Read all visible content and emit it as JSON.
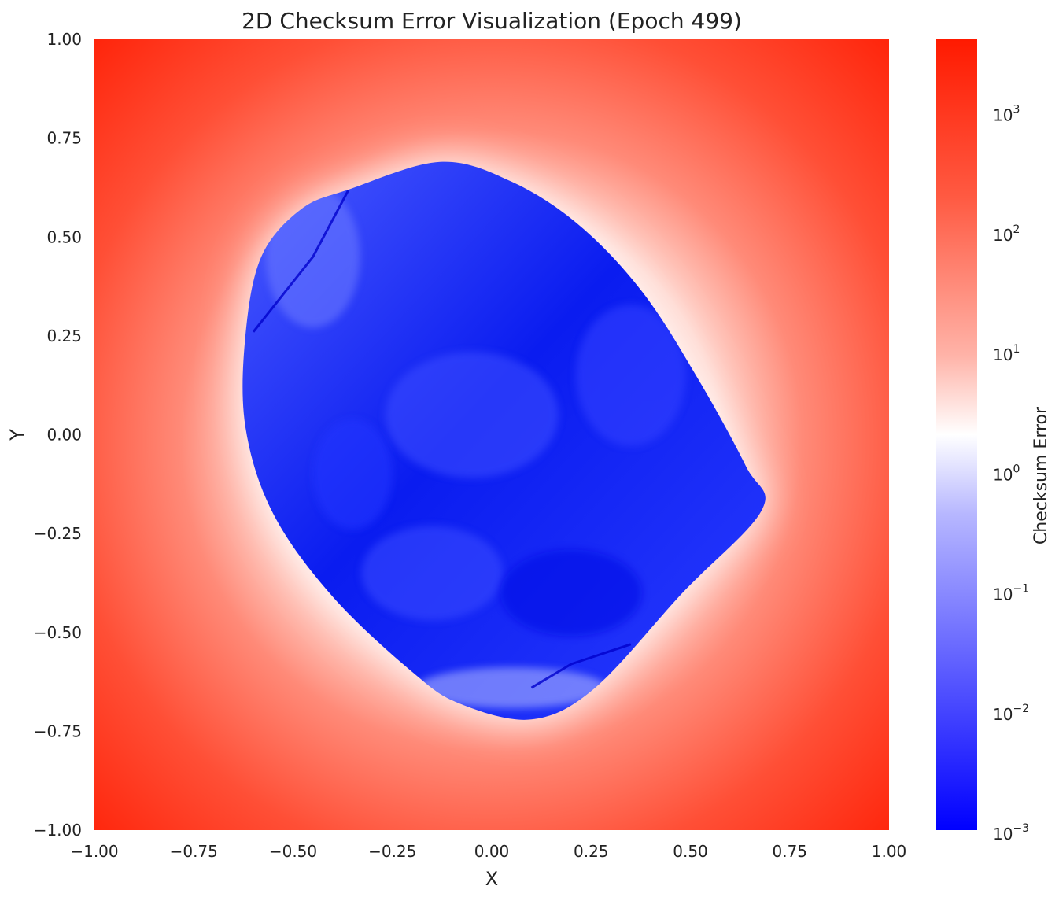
{
  "chart_data": {
    "type": "heatmap",
    "title": "2D Checksum Error Visualization (Epoch 499)",
    "xlabel": "X",
    "ylabel": "Y",
    "xlim": [
      -1.0,
      1.0
    ],
    "ylim": [
      -1.0,
      1.0
    ],
    "x_ticks": [
      "−1.00",
      "−0.75",
      "−0.50",
      "−0.25",
      "0.00",
      "0.25",
      "0.50",
      "0.75",
      "1.00"
    ],
    "y_ticks": [
      "1.00",
      "0.75",
      "0.50",
      "0.25",
      "0.00",
      "−0.25",
      "−0.50",
      "−0.75",
      "−1.00"
    ],
    "grid": false,
    "colormap": "bwr",
    "color_scale": "log",
    "colorbar": {
      "label": "Checksum Error",
      "min": 0.001,
      "max": 4000,
      "ticks": [
        {
          "base": "10",
          "exp": "3",
          "value": 1000
        },
        {
          "base": "10",
          "exp": "2",
          "value": 100
        },
        {
          "base": "10",
          "exp": "1",
          "value": 10
        },
        {
          "base": "10",
          "exp": "0",
          "value": 1
        },
        {
          "base": "10",
          "exp": "−1",
          "value": 0.1
        },
        {
          "base": "10",
          "exp": "−2",
          "value": 0.01
        },
        {
          "base": "10",
          "exp": "−3",
          "value": 0.001
        }
      ]
    },
    "low_error_region_boundary": [
      [
        -0.13,
        0.69
      ],
      [
        0.05,
        0.64
      ],
      [
        0.22,
        0.53
      ],
      [
        0.38,
        0.36
      ],
      [
        0.52,
        0.14
      ],
      [
        0.64,
        -0.08
      ],
      [
        0.68,
        -0.19
      ],
      [
        0.48,
        -0.4
      ],
      [
        0.26,
        -0.64
      ],
      [
        0.1,
        -0.72
      ],
      [
        -0.08,
        -0.68
      ],
      [
        -0.2,
        -0.6
      ],
      [
        -0.4,
        -0.41
      ],
      [
        -0.55,
        -0.2
      ],
      [
        -0.62,
        0.02
      ],
      [
        -0.62,
        0.25
      ],
      [
        -0.58,
        0.45
      ],
      [
        -0.48,
        0.57
      ],
      [
        -0.36,
        0.62
      ]
    ],
    "colors": {
      "low": "#0000ff",
      "mid": "#ffffff",
      "high": "#ff1a00"
    }
  }
}
